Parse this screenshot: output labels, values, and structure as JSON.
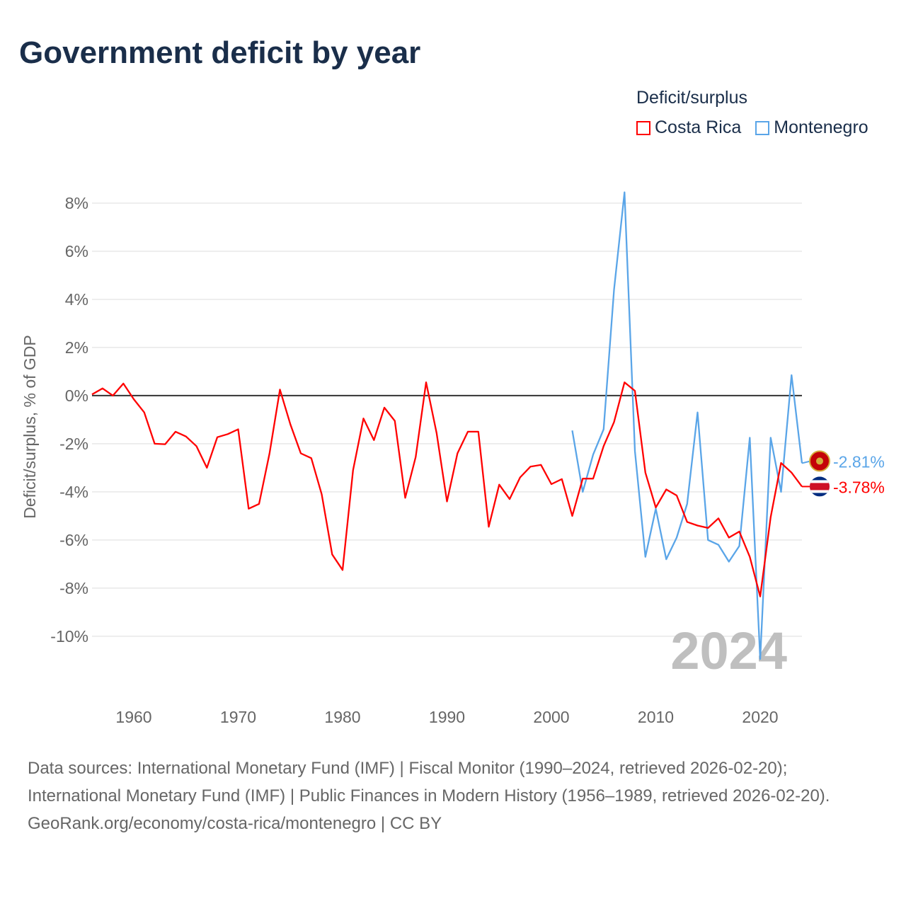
{
  "title": "Government deficit by year",
  "legend": {
    "title": "Deficit/surplus",
    "items": [
      {
        "name": "Costa Rica",
        "color": "#ff0000"
      },
      {
        "name": "Montenegro",
        "color": "#5aa5e8"
      }
    ]
  },
  "watermark_year": "2024",
  "footer": {
    "sources": "Data sources: International Monetary Fund (IMF) | Fiscal Monitor (1990–2024, retrieved 2026-02-20); International Monetary Fund (IMF) | Public Finances in Modern History (1956–1989, retrieved 2026-02-20).",
    "credit": "GeoRank.org/economy/costa-rica/montenegro | CC BY"
  },
  "chart_data": {
    "type": "line",
    "title": "Government deficit by year",
    "xlabel": "",
    "ylabel": "Deficit/surplus, % of GDP",
    "xlim": [
      1956,
      2024
    ],
    "ylim": [
      -12.3,
      9
    ],
    "x_ticks": [
      1960,
      1970,
      1980,
      1990,
      2000,
      2010,
      2020
    ],
    "y_ticks": [
      8,
      6,
      4,
      2,
      0,
      -2,
      -4,
      -6,
      -8,
      -10
    ],
    "y_tick_labels": [
      "8%",
      "6%",
      "4%",
      "2%",
      "0%",
      "-2%",
      "-4%",
      "-6%",
      "-8%",
      "-10%"
    ],
    "grid": true,
    "legend_position": "top-right",
    "series": [
      {
        "name": "Costa Rica",
        "color": "#ff0000",
        "start_year": 1956,
        "end_label": "-3.78%",
        "values": [
          0.05,
          0.3,
          0.0,
          0.5,
          -0.15,
          -0.7,
          -2.0,
          -2.02,
          -1.5,
          -1.7,
          -2.1,
          -3.0,
          -1.73,
          -1.6,
          -1.4,
          -4.7,
          -4.5,
          -2.4,
          0.25,
          -1.2,
          -2.4,
          -2.6,
          -4.1,
          -6.6,
          -7.25,
          -3.1,
          -0.95,
          -1.85,
          -0.5,
          -1.05,
          -4.25,
          -2.55,
          0.55,
          -1.55,
          -4.4,
          -2.4,
          -1.5,
          -1.5,
          -5.45,
          -3.7,
          -4.3,
          -3.4,
          -2.95,
          -2.88,
          -3.68,
          -3.47,
          -5.0,
          -3.45,
          -3.45,
          -2.1,
          -1.1,
          0.55,
          0.2,
          -3.2,
          -4.65,
          -3.9,
          -4.15,
          -5.25,
          -5.4,
          -5.5,
          -5.1,
          -5.9,
          -5.65,
          -6.7,
          -8.35,
          -5.05,
          -2.8,
          -3.2,
          -3.78
        ]
      },
      {
        "name": "Montenegro",
        "color": "#5aa5e8",
        "start_year": 2002,
        "end_label": "-2.81%",
        "values": [
          -1.45,
          -4.0,
          -2.45,
          -1.4,
          4.4,
          8.45,
          -2.3,
          -6.7,
          -4.7,
          -6.8,
          -5.9,
          -4.5,
          -0.7,
          -6.0,
          -6.2,
          -6.9,
          -6.25,
          -1.75,
          -10.95,
          -1.75,
          -4.0,
          0.85,
          -2.81
        ]
      }
    ]
  }
}
